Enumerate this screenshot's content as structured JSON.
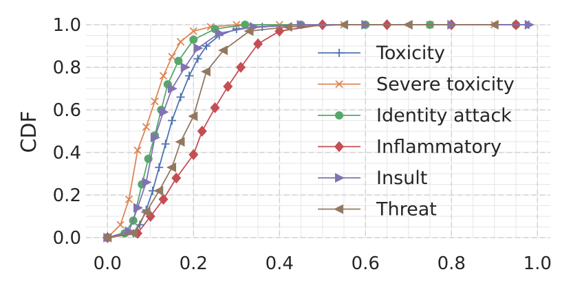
{
  "chart_data": {
    "type": "line",
    "title": "",
    "xlabel": "",
    "ylabel": "CDF",
    "xlim": [
      -0.05,
      1.03
    ],
    "ylim": [
      0,
      1
    ],
    "x_ticks": [
      0.0,
      0.2,
      0.4,
      0.6,
      0.8,
      1.0
    ],
    "x_tick_labels": [
      "0.0",
      "0.2",
      "0.4",
      "0.6",
      "0.8",
      "1.0"
    ],
    "y_ticks": [
      0.0,
      0.2,
      0.4,
      0.6,
      0.8,
      1.0
    ],
    "y_tick_labels": [
      "0.0",
      "0.2",
      "0.4",
      "0.6",
      "0.8",
      "1.0"
    ],
    "grid": true,
    "legend_position": "right",
    "series": [
      {
        "name": "Toxicity",
        "color": "#4c72b0",
        "marker": "plus",
        "x": [
          0.0,
          0.06,
          0.075,
          0.09,
          0.105,
          0.12,
          0.135,
          0.15,
          0.17,
          0.19,
          0.21,
          0.23,
          0.26,
          0.3,
          0.36,
          0.45,
          0.6,
          0.8,
          0.98
        ],
        "y": [
          0.0,
          0.02,
          0.06,
          0.13,
          0.22,
          0.33,
          0.44,
          0.55,
          0.66,
          0.76,
          0.84,
          0.9,
          0.95,
          0.98,
          0.99,
          1.0,
          1.0,
          1.0,
          1.0
        ]
      },
      {
        "name": "Severe toxicity",
        "color": "#dd8452",
        "marker": "x",
        "x": [
          0.0,
          0.03,
          0.05,
          0.07,
          0.09,
          0.11,
          0.13,
          0.15,
          0.17,
          0.2,
          0.24,
          0.3,
          0.4,
          0.55,
          0.75,
          0.9
        ],
        "y": [
          0.0,
          0.06,
          0.18,
          0.41,
          0.52,
          0.64,
          0.76,
          0.85,
          0.92,
          0.97,
          0.99,
          1.0,
          1.0,
          1.0,
          1.0,
          1.0
        ]
      },
      {
        "name": "Identity attack",
        "color": "#55a868",
        "marker": "circle",
        "x": [
          0.0,
          0.04,
          0.06,
          0.08,
          0.095,
          0.11,
          0.125,
          0.14,
          0.165,
          0.2,
          0.25,
          0.32,
          0.45,
          0.6,
          0.75,
          0.95
        ],
        "y": [
          0.0,
          0.02,
          0.08,
          0.25,
          0.37,
          0.48,
          0.6,
          0.72,
          0.83,
          0.93,
          0.98,
          1.0,
          1.0,
          1.0,
          1.0,
          1.0
        ]
      },
      {
        "name": "Inflammatory",
        "color": "#c44e52",
        "marker": "diamond",
        "x": [
          0.0,
          0.07,
          0.1,
          0.13,
          0.16,
          0.2,
          0.22,
          0.25,
          0.28,
          0.31,
          0.35,
          0.4,
          0.5,
          0.65,
          0.8,
          0.95
        ],
        "y": [
          0.0,
          0.02,
          0.1,
          0.18,
          0.28,
          0.39,
          0.5,
          0.61,
          0.71,
          0.8,
          0.91,
          0.97,
          1.0,
          1.0,
          1.0,
          1.0
        ]
      },
      {
        "name": "Insult",
        "color": "#8172b3",
        "marker": "triangle-right",
        "x": [
          0.0,
          0.05,
          0.07,
          0.09,
          0.11,
          0.13,
          0.15,
          0.18,
          0.21,
          0.26,
          0.34,
          0.45,
          0.6,
          0.8,
          0.98
        ],
        "y": [
          0.0,
          0.03,
          0.14,
          0.26,
          0.47,
          0.59,
          0.7,
          0.8,
          0.89,
          0.96,
          0.99,
          1.0,
          1.0,
          1.0,
          1.0
        ]
      },
      {
        "name": "Threat",
        "color": "#937860",
        "marker": "triangle-left",
        "x": [
          0.0,
          0.06,
          0.09,
          0.12,
          0.15,
          0.17,
          0.2,
          0.23,
          0.27,
          0.33,
          0.42,
          0.55,
          0.7,
          0.9
        ],
        "y": [
          0.0,
          0.02,
          0.12,
          0.22,
          0.33,
          0.45,
          0.57,
          0.78,
          0.88,
          0.97,
          0.99,
          1.0,
          1.0,
          1.0
        ]
      }
    ]
  }
}
